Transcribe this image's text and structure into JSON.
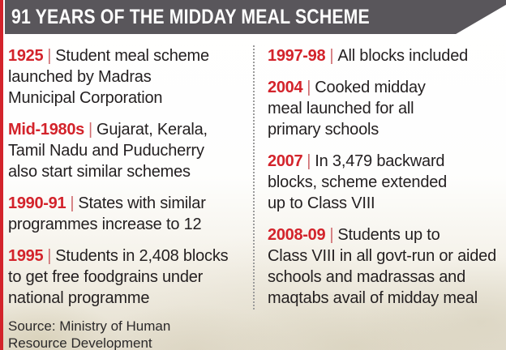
{
  "header": {
    "title": "91 YEARS OF THE MIDDAY MEAL SCHEME"
  },
  "timeline": {
    "separator": "|",
    "left": [
      {
        "year": "1925",
        "text": "Student meal scheme\nlaunched by Madras\nMunicipal Corporation"
      },
      {
        "year": "Mid-1980s",
        "text": "Gujarat, Kerala,\nTamil Nadu and Puducherry\nalso start similar schemes"
      },
      {
        "year": "1990-91",
        "text": "States with similar\nprogrammes increase to 12"
      },
      {
        "year": "1995",
        "text": "Students in 2,408 blocks\nto get free foodgrains under\nnational programme"
      }
    ],
    "right": [
      {
        "year": "1997-98",
        "text": "All blocks included"
      },
      {
        "year": "2004",
        "text": "Cooked midday\nmeal launched for all\nprimary schools"
      },
      {
        "year": "2007",
        "text": "In 3,479 backward\nblocks, scheme extended\nup to Class VIII"
      },
      {
        "year": "2008-09",
        "text": "Students up to\nClass VIII in all govt-run or aided\nschools and madrassas and\nmaqtabs avail of midday meal"
      }
    ]
  },
  "source": {
    "text": "Source: Ministry of Human\nResource Development"
  },
  "colors": {
    "accent_red": "#d3232b",
    "header_bg": "#59565b",
    "body_text": "#231f20",
    "separator_red": "#cf6a6e",
    "divider_gray": "#9b9b9b",
    "background_bottom": "#e5dfd0"
  }
}
